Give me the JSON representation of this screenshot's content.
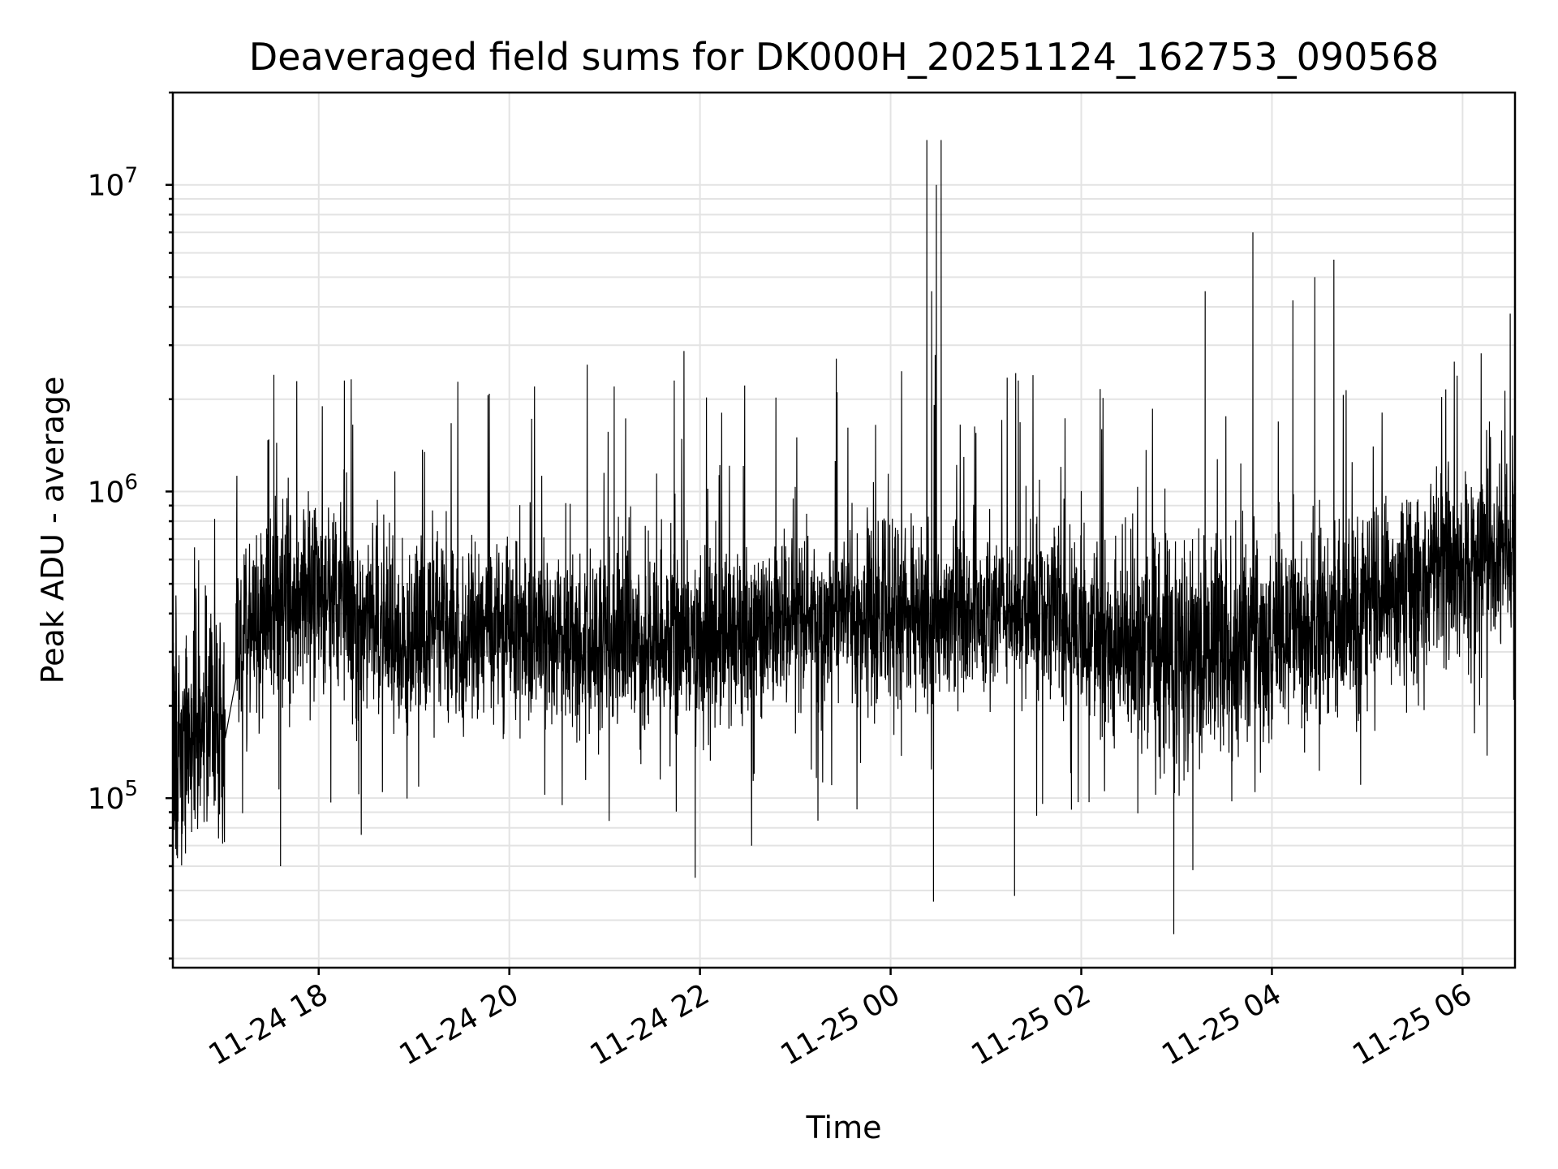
{
  "chart_data": {
    "type": "line",
    "title": "Deaveraged field sums for DK000H_20251124_162753_090568",
    "xlabel": "Time",
    "ylabel": "Peak ADU - average",
    "yscale": "log",
    "ylim": [
      28000,
      20000000
    ],
    "xlim_hours": [
      -1.53,
      12.55
    ],
    "x_ticks": [
      {
        "hour": 0,
        "label": "11-24 18"
      },
      {
        "hour": 2,
        "label": "11-24 20"
      },
      {
        "hour": 4,
        "label": "11-24 22"
      },
      {
        "hour": 6,
        "label": "11-25 00"
      },
      {
        "hour": 8,
        "label": "11-25 02"
      },
      {
        "hour": 10,
        "label": "11-25 04"
      },
      {
        "hour": 12,
        "label": "11-25 06"
      }
    ],
    "y_ticks": [
      {
        "value": 100000,
        "base": "10",
        "exp": "5"
      },
      {
        "value": 1000000,
        "base": "10",
        "exp": "6"
      },
      {
        "value": 10000000,
        "base": "10",
        "exp": "7"
      }
    ],
    "grid": true,
    "series": [
      {
        "name": "Deaveraged field sum",
        "color": "#000000",
        "baseline_points": [
          {
            "hour": -1.53,
            "median": 170000,
            "spread": 1.45
          },
          {
            "hour": -1.0,
            "median": 180000,
            "spread": 1.5
          },
          {
            "hour": -0.85,
            "median": 300000,
            "spread": 1.45
          },
          {
            "hour": -0.4,
            "median": 420000,
            "spread": 1.4
          },
          {
            "hour": 0.0,
            "median": 480000,
            "spread": 1.35
          },
          {
            "hour": 0.5,
            "median": 380000,
            "spread": 1.35
          },
          {
            "hour": 1.0,
            "median": 350000,
            "spread": 1.35
          },
          {
            "hour": 2.0,
            "median": 360000,
            "spread": 1.35
          },
          {
            "hour": 3.0,
            "median": 330000,
            "spread": 1.35
          },
          {
            "hour": 4.0,
            "median": 320000,
            "spread": 1.35
          },
          {
            "hour": 5.0,
            "median": 380000,
            "spread": 1.3
          },
          {
            "hour": 6.0,
            "median": 400000,
            "spread": 1.35
          },
          {
            "hour": 7.0,
            "median": 420000,
            "spread": 1.3
          },
          {
            "hour": 8.0,
            "median": 350000,
            "spread": 1.35
          },
          {
            "hour": 9.0,
            "median": 300000,
            "spread": 1.45
          },
          {
            "hour": 10.0,
            "median": 320000,
            "spread": 1.35
          },
          {
            "hour": 11.0,
            "median": 420000,
            "spread": 1.35
          },
          {
            "hour": 12.0,
            "median": 550000,
            "spread": 1.4
          },
          {
            "hour": 12.55,
            "median": 650000,
            "spread": 1.4
          }
        ],
        "notable_peaks": [
          {
            "hour": 6.38,
            "value": 14000000
          },
          {
            "hour": 6.53,
            "value": 14000000
          },
          {
            "hour": 6.48,
            "value": 10000000
          },
          {
            "hour": 6.43,
            "value": 4500000
          },
          {
            "hour": 9.8,
            "value": 7000000
          },
          {
            "hour": 10.65,
            "value": 5700000
          },
          {
            "hour": 10.45,
            "value": 5000000
          },
          {
            "hour": 10.22,
            "value": 4200000
          },
          {
            "hour": 9.3,
            "value": 4500000
          },
          {
            "hour": -0.47,
            "value": 2400000
          },
          {
            "hour": 0.27,
            "value": 2300000
          },
          {
            "hour": 3.73,
            "value": 2300000
          },
          {
            "hour": 3.1,
            "value": 2200000
          },
          {
            "hour": 12.5,
            "value": 3800000
          }
        ],
        "notable_dips": [
          {
            "hour": 8.97,
            "value": 36000
          },
          {
            "hour": 6.45,
            "value": 46000
          },
          {
            "hour": -0.4,
            "value": 60000
          },
          {
            "hour": 7.3,
            "value": 48000
          },
          {
            "hour": 3.95,
            "value": 55000
          }
        ]
      }
    ]
  }
}
